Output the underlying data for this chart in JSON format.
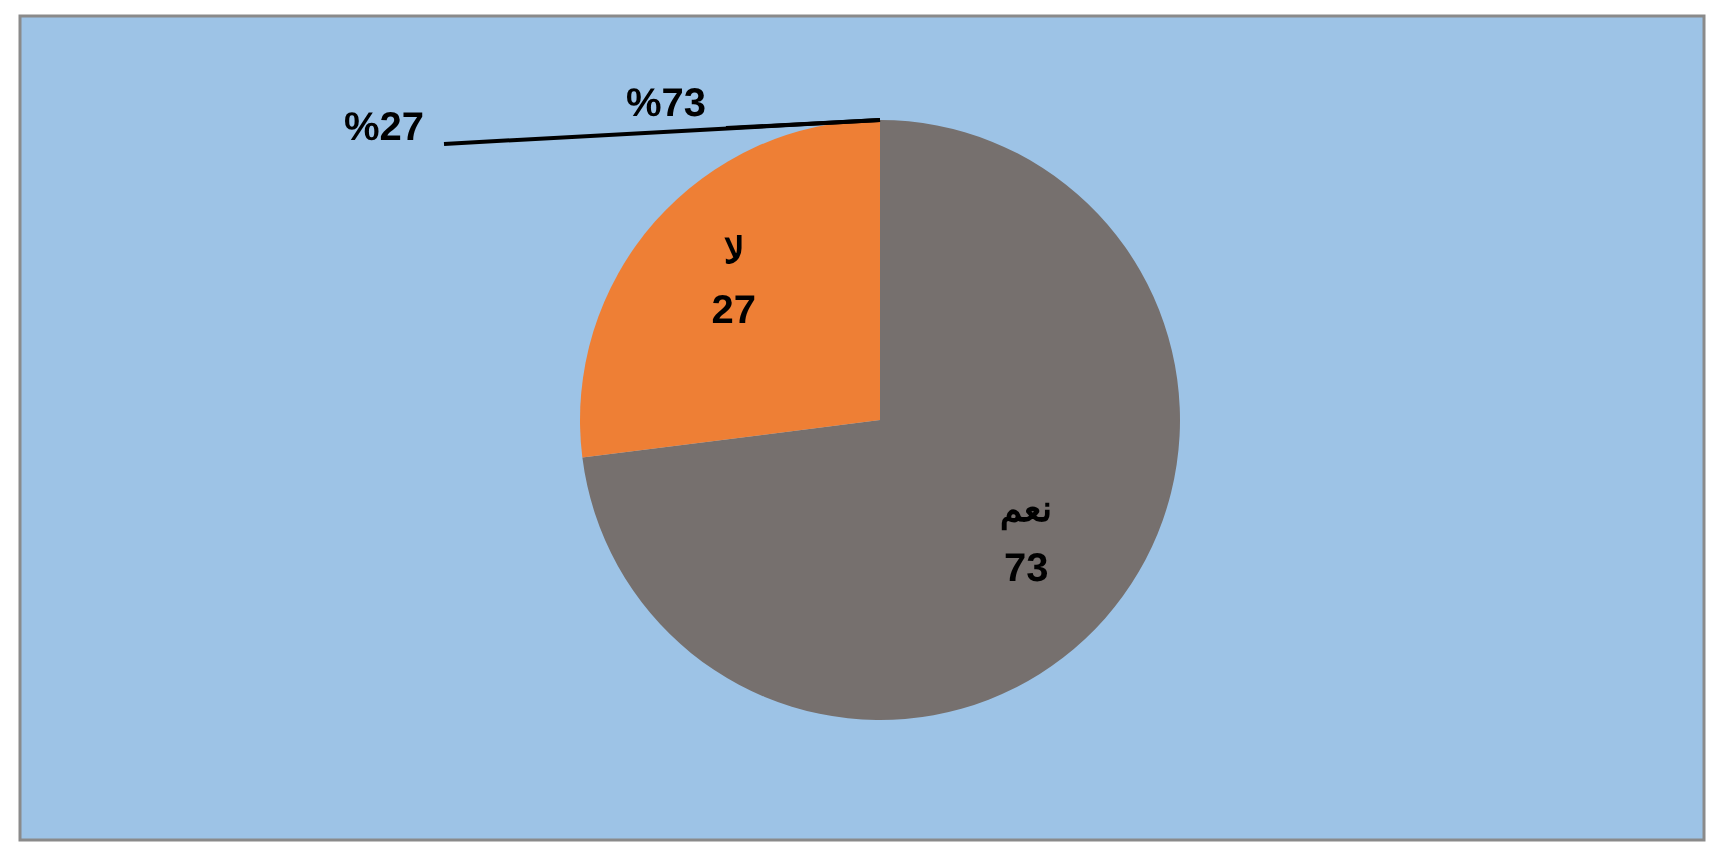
{
  "chart_data": {
    "type": "pie",
    "categories": [
      "نعم",
      "لا"
    ],
    "values": [
      73,
      27
    ],
    "colors": [
      "#76706e",
      "#ee7f35"
    ],
    "data_labels": true,
    "annotations": [
      "%73",
      "%27"
    ]
  }
}
